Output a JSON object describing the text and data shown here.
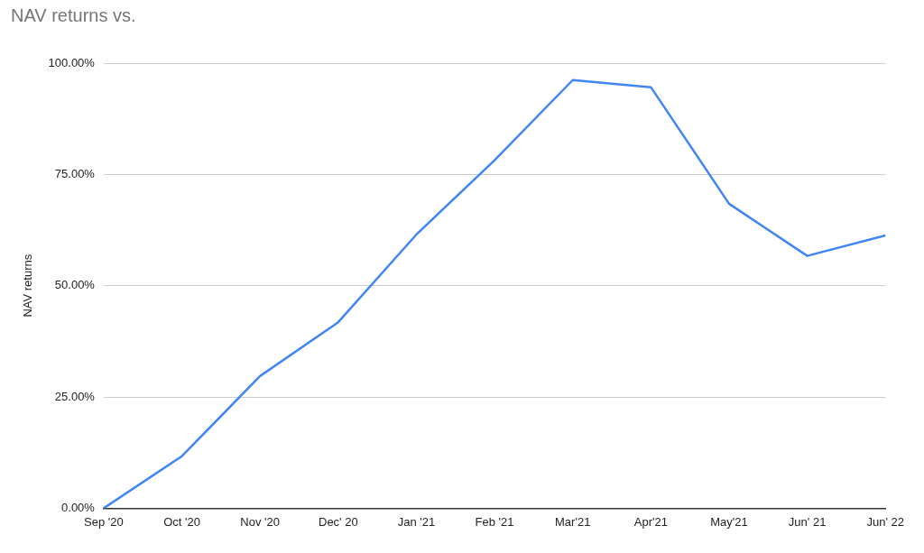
{
  "chart_data": {
    "type": "line",
    "title": "NAV returns vs.",
    "ylabel": "NAV returns",
    "categories": [
      "Sep '20",
      "Oct '20",
      "Nov '20",
      "Dec' 20",
      "Jan '21",
      "Feb '21",
      "Mar'21",
      "Apr'21",
      "May'21",
      "Jun' 21",
      "Jun' 22"
    ],
    "series": [
      {
        "color": "#4285f4",
        "values": [
          0,
          11.7,
          29.7,
          41.8,
          61.5,
          78.2,
          96.2,
          94.6,
          68.4,
          56.7,
          61.3
        ]
      }
    ],
    "ylim": [
      0,
      100
    ],
    "yticks": [
      {
        "value": 0,
        "label": "0.00%"
      },
      {
        "value": 25,
        "label": "25.00%"
      },
      {
        "value": 50,
        "label": "50.00%"
      },
      {
        "value": 75,
        "label": "75.00%"
      },
      {
        "value": 100,
        "label": "100.00%"
      }
    ],
    "grid": "y",
    "marker": "none",
    "line_style": "solid"
  }
}
